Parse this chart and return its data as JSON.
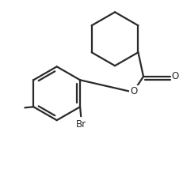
{
  "background_color": "#ffffff",
  "line_color": "#2a2a2a",
  "line_width": 1.6,
  "text_color": "#2a2a2a",
  "figsize": [
    2.31,
    2.19
  ],
  "dpi": 100,
  "xlim": [
    0.0,
    1.0
  ],
  "ylim": [
    0.0,
    1.0
  ]
}
